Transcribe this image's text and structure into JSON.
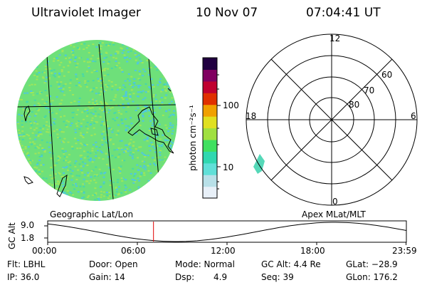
{
  "header": {
    "title": "Ultraviolet Imager",
    "date": "10 Nov 07",
    "time": "07:04:41 UT"
  },
  "colorbar": {
    "unit_label": "photon cm⁻²s⁻¹",
    "ticks": [
      {
        "label": "100",
        "value": 100
      },
      {
        "label": "10",
        "value": 10
      }
    ],
    "colors": [
      "#e8f0f8",
      "#b8e0e8",
      "#60e0d8",
      "#30d8b0",
      "#40e060",
      "#a0e040",
      "#e0e020",
      "#f0a000",
      "#e03000",
      "#c00030",
      "#800060",
      "#200040"
    ]
  },
  "polar_plot": {
    "mlt_labels": {
      "top": "12",
      "bottom": "0",
      "left": "18",
      "right": "6"
    },
    "lat_labels": [
      "60",
      "70",
      "80"
    ]
  },
  "timeline": {
    "left_label": "Geographic Lat/Lon",
    "right_label": "Apex MLat/MLT",
    "y_axis_label": "GC Alt",
    "y_ticks": [
      "9.0",
      "1.8"
    ],
    "x_ticks": [
      "00:00",
      "06:00",
      "12:00",
      "18:00",
      "23:59"
    ],
    "current_time_hours": 7.08,
    "marker_color": "#e00000"
  },
  "info": {
    "flt": "Flt: LBHL",
    "ip": "IP: 36.0",
    "door": "Door: Open",
    "gain": "Gain: 14",
    "mode": "Mode: Normal",
    "dsp_label": "Dsp:",
    "dsp_value": "4.9",
    "gc_alt": "GC Alt: 4.4 Re",
    "seq": "Seq: 39",
    "glat": "GLat: −28.9",
    "glon": "GLon: 176.2"
  },
  "colors": {
    "disk_base": "#6ee07a",
    "disk_speckle_a": "#9ee65a",
    "disk_speckle_b": "#48d8a8",
    "disk_speckle_c": "#4fc8e0"
  }
}
